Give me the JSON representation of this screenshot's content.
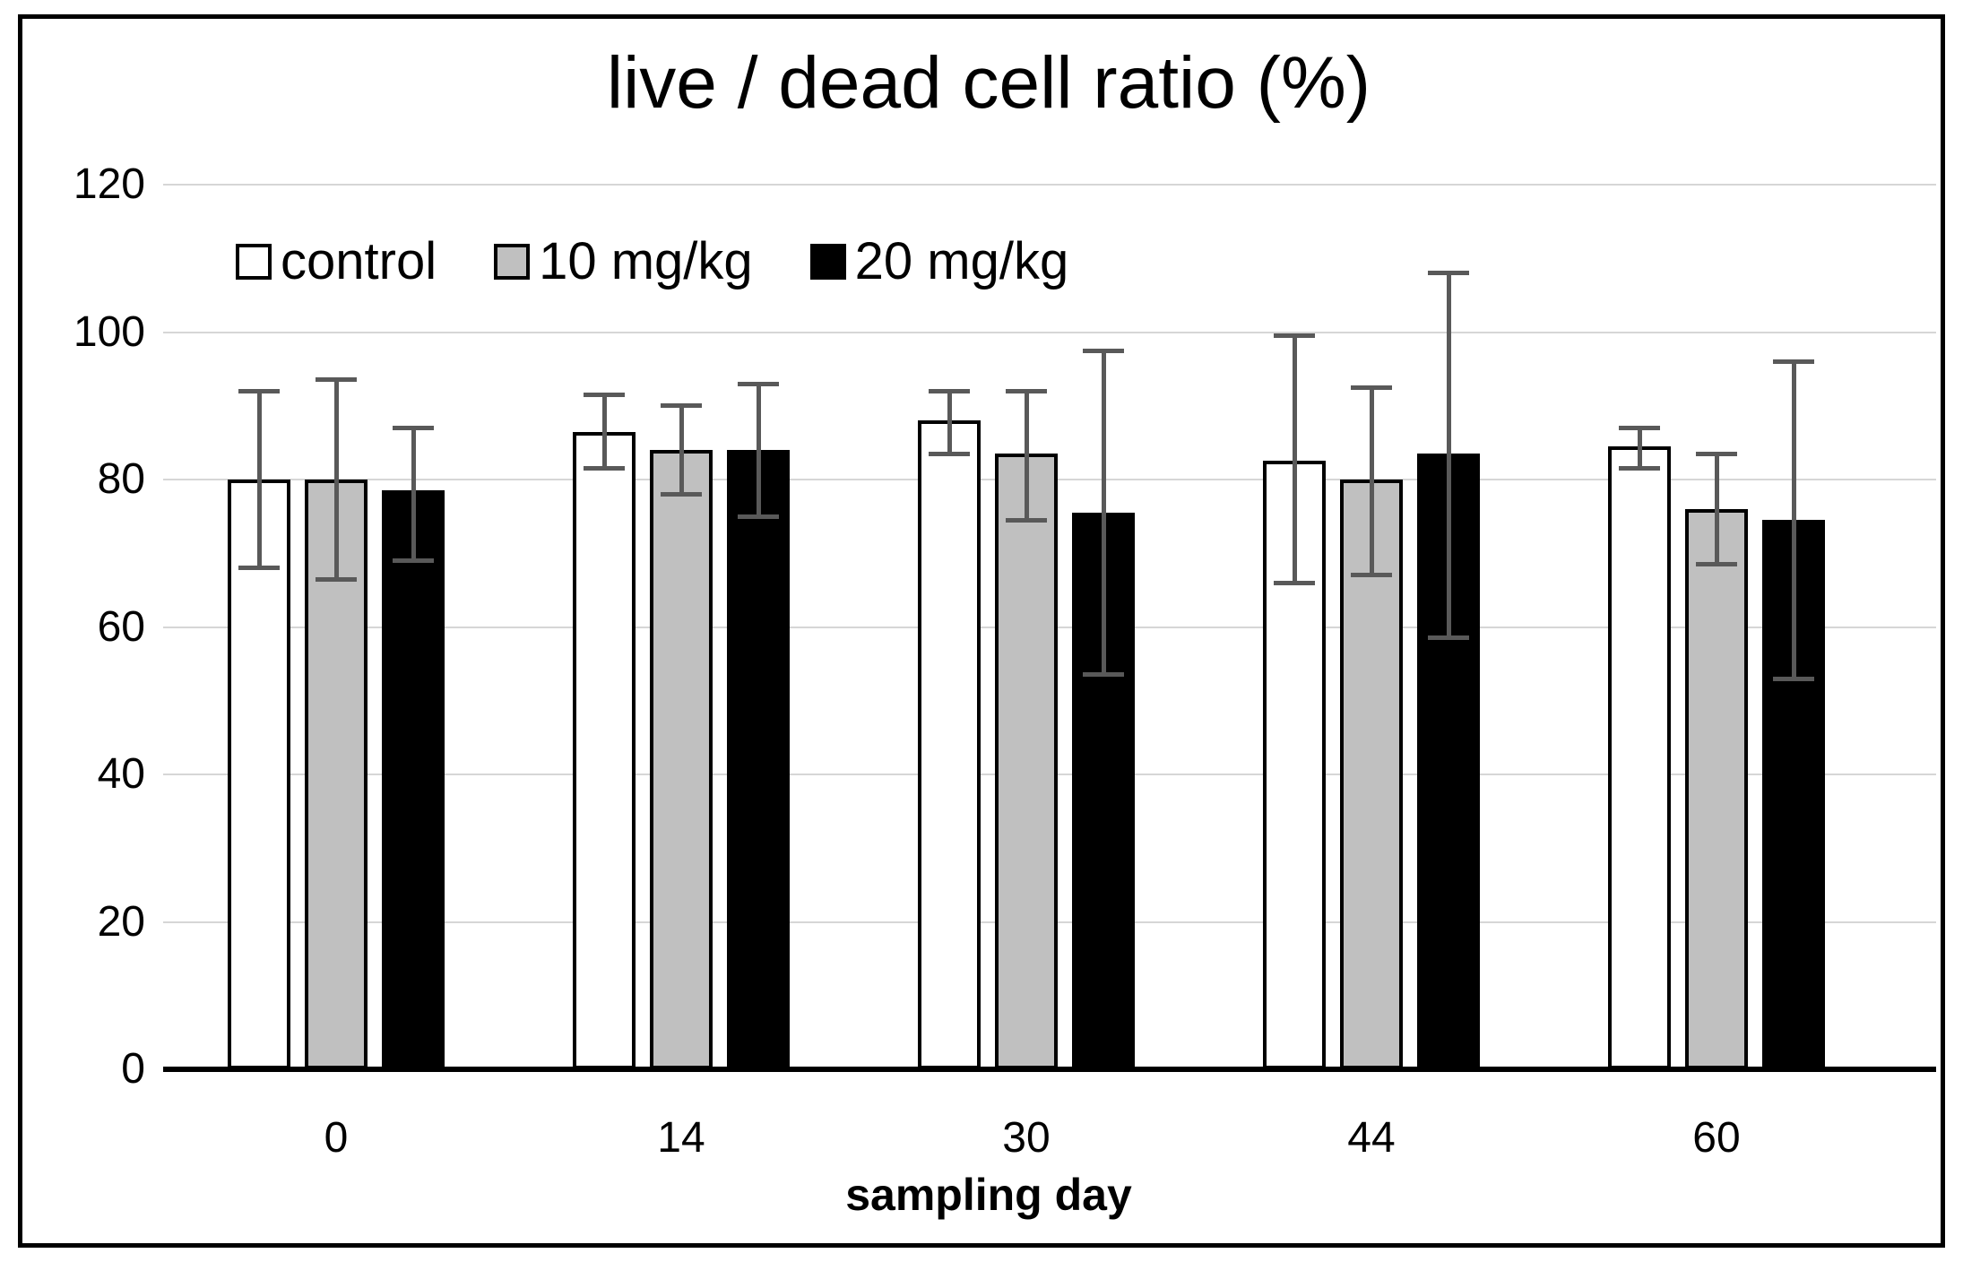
{
  "figure": {
    "title": "live / dead cell ratio (%)",
    "x_axis_title": "sampling day"
  },
  "legend": {
    "items": [
      {
        "label": "control",
        "fill": "#ffffff"
      },
      {
        "label": "10 mg/kg",
        "fill": "#c0c0c0"
      },
      {
        "label": "20 mg/kg",
        "fill": "#000000"
      }
    ]
  },
  "colors": {
    "bar_outline": "#000000",
    "error_bar": "#595959",
    "gridline": "#d6d6d6",
    "axis_line": "#000000",
    "figure_border": "#000000"
  },
  "chart_data": {
    "type": "bar",
    "title": "live / dead cell ratio (%)",
    "xlabel": "sampling day",
    "ylabel": "",
    "ylim": [
      0,
      120
    ],
    "y_ticks": [
      0,
      20,
      40,
      60,
      80,
      100,
      120
    ],
    "grid": true,
    "legend_position": "inside-top-left",
    "categories": [
      "0",
      "14",
      "30",
      "44",
      "60"
    ],
    "series": [
      {
        "name": "control",
        "fill": "#ffffff",
        "values": [
          80,
          86.5,
          88,
          82.5,
          84.5
        ],
        "error_low": [
          68,
          81.5,
          83.5,
          66,
          81.5
        ],
        "error_high": [
          92,
          91.5,
          92,
          99.5,
          87
        ]
      },
      {
        "name": "10 mg/kg",
        "fill": "#c0c0c0",
        "values": [
          80,
          84,
          83.5,
          80,
          76
        ],
        "error_low": [
          66.5,
          78,
          74.5,
          67,
          68.5
        ],
        "error_high": [
          93.5,
          90,
          92,
          92.5,
          83.5
        ]
      },
      {
        "name": "20 mg/kg",
        "fill": "#000000",
        "values": [
          78.5,
          84,
          75.5,
          83.5,
          74.5
        ],
        "error_low": [
          69,
          75,
          53.5,
          58.5,
          53
        ],
        "error_high": [
          87,
          93,
          97.5,
          108,
          96
        ]
      }
    ]
  }
}
